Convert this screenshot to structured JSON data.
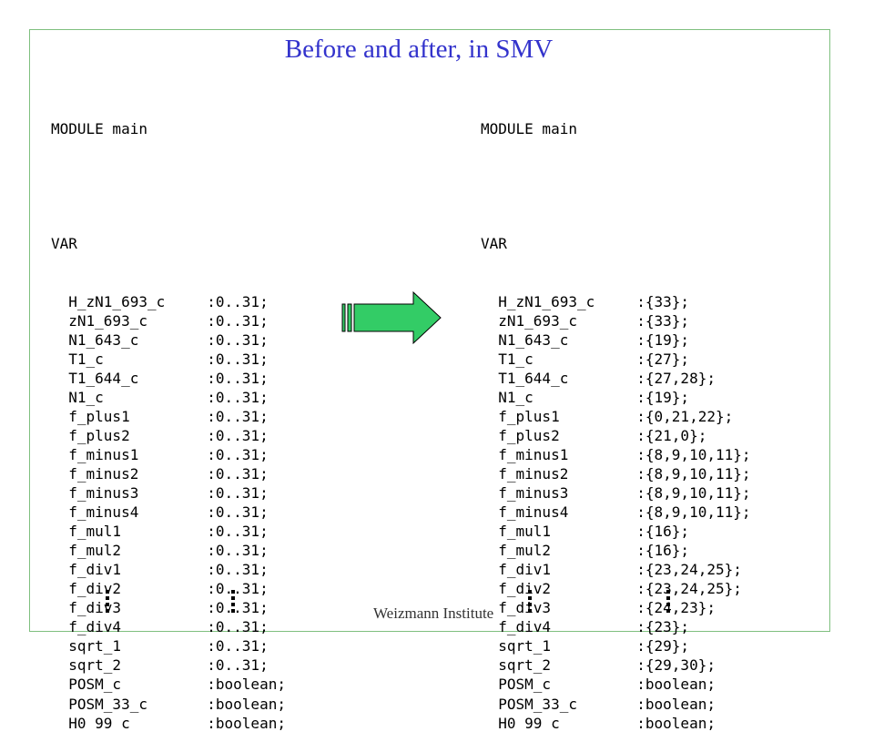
{
  "title": "Before and after, in SMV",
  "footer": "Weizmann Institute",
  "left": {
    "module": "MODULE main",
    "var": "VAR",
    "vars": [
      {
        "name": "H_zN1_693_c",
        "type": ":0..31;"
      },
      {
        "name": "zN1_693_c",
        "type": ":0..31;"
      },
      {
        "name": "N1_643_c",
        "type": ":0..31;"
      },
      {
        "name": "T1_c",
        "type": ":0..31;"
      },
      {
        "name": "T1_644_c",
        "type": ":0..31;"
      },
      {
        "name": "N1_c",
        "type": ":0..31;"
      },
      {
        "name": "f_plus1",
        "type": ":0..31;"
      },
      {
        "name": "f_plus2",
        "type": ":0..31;"
      },
      {
        "name": "f_minus1",
        "type": ":0..31;"
      },
      {
        "name": "f_minus2",
        "type": ":0..31;"
      },
      {
        "name": "f_minus3",
        "type": ":0..31;"
      },
      {
        "name": "f_minus4",
        "type": ":0..31;"
      },
      {
        "name": "f_mul1",
        "type": ":0..31;"
      },
      {
        "name": "f_mul2",
        "type": ":0..31;"
      },
      {
        "name": "f_div1",
        "type": ":0..31;"
      },
      {
        "name": "f_div2",
        "type": ":0..31;"
      },
      {
        "name": "f_div3",
        "type": ":0..31;"
      },
      {
        "name": "f_div4",
        "type": ":0..31;"
      },
      {
        "name": "sqrt_1",
        "type": ":0..31;"
      },
      {
        "name": "sqrt_2",
        "type": ":0..31;"
      },
      {
        "name": "POSM_c",
        "type": ":boolean;"
      },
      {
        "name": "POSM_33_c",
        "type": ":boolean;"
      },
      {
        "name": "H0 99 c",
        "type": ":boolean;"
      }
    ]
  },
  "right": {
    "module": "MODULE main",
    "var": "VAR",
    "vars": [
      {
        "name": "H_zN1_693_c",
        "type": ":{33};"
      },
      {
        "name": "zN1_693_c",
        "type": ":{33};"
      },
      {
        "name": "N1_643_c",
        "type": ":{19};"
      },
      {
        "name": "T1_c",
        "type": ":{27};"
      },
      {
        "name": "T1_644_c",
        "type": ":{27,28};"
      },
      {
        "name": "N1_c",
        "type": ":{19};"
      },
      {
        "name": "f_plus1",
        "type": ":{0,21,22};"
      },
      {
        "name": "f_plus2",
        "type": ":{21,0};"
      },
      {
        "name": "f_minus1",
        "type": ":{8,9,10,11};"
      },
      {
        "name": "f_minus2",
        "type": ":{8,9,10,11};"
      },
      {
        "name": "f_minus3",
        "type": ":{8,9,10,11};"
      },
      {
        "name": "f_minus4",
        "type": ":{8,9,10,11};"
      },
      {
        "name": "f_mul1",
        "type": ":{16};"
      },
      {
        "name": "f_mul2",
        "type": ":{16};"
      },
      {
        "name": "f_div1",
        "type": ":{23,24,25};"
      },
      {
        "name": "f_div2",
        "type": ":{23,24,25};"
      },
      {
        "name": "f_div3",
        "type": ":{24,23};"
      },
      {
        "name": "f_div4",
        "type": ":{23};"
      },
      {
        "name": "sqrt_1",
        "type": ":{29};"
      },
      {
        "name": "sqrt_2",
        "type": ":{29,30};"
      },
      {
        "name": "POSM_c",
        "type": ":boolean;"
      },
      {
        "name": "POSM_33_c",
        "type": ":boolean;"
      },
      {
        "name": "H0 99 c",
        "type": ":boolean;"
      }
    ]
  },
  "colors": {
    "title": "#3333cc",
    "arrow_fill": "#33cc66",
    "frame": "#7fbf7f"
  },
  "icons": {
    "arrow": "right-arrow-icon",
    "ellipsis": "vertical-ellipsis-icon"
  }
}
